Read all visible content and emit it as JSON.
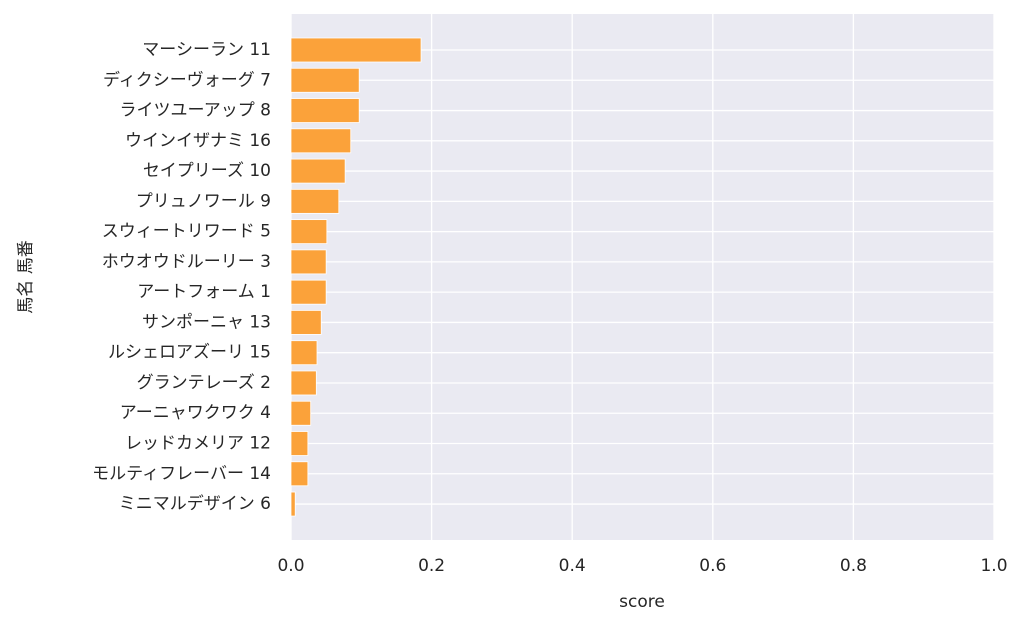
{
  "chart_data": {
    "type": "barh",
    "categories": [
      "マーシーラン 11",
      "ディクシーヴォーグ 7",
      "ライツユーアップ 8",
      "ウインイザナミ 16",
      "セイプリーズ 10",
      "プリュノワール 9",
      "スウィートリワード 5",
      "ホウオウドルーリー 3",
      "アートフォーム 1",
      "サンポーニャ 13",
      "ルシェロアズーリ 15",
      "グランテレーズ 2",
      "アーニャワクワク 4",
      "レッドカメリア 12",
      "モルティフレーバー 14",
      "ミニマルデザイン 6"
    ],
    "values": [
      0.185,
      0.097,
      0.097,
      0.085,
      0.077,
      0.068,
      0.051,
      0.05,
      0.05,
      0.043,
      0.037,
      0.036,
      0.028,
      0.024,
      0.024,
      0.006
    ],
    "color": "#fba23a",
    "xlabel": "score",
    "ylabel": "馬名 馬番",
    "xlim": [
      0,
      1
    ],
    "xticks": [
      {
        "value": 0,
        "label": "0.0"
      },
      0.2,
      0.4,
      0.6,
      0.8,
      {
        "value": 1,
        "label": "1.0"
      }
    ],
    "grid": true
  }
}
